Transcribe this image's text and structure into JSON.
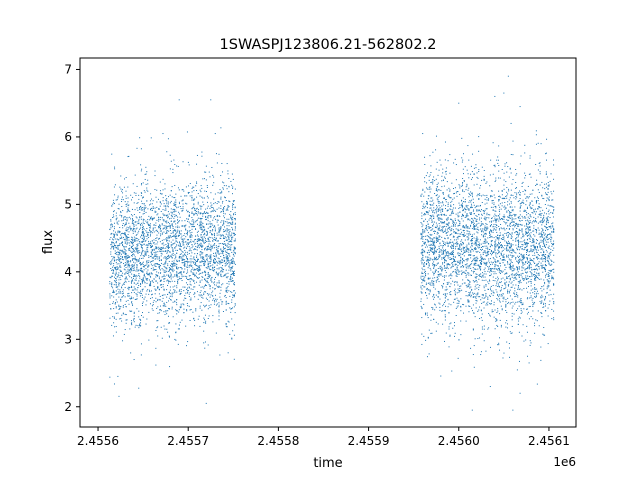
{
  "chart_data": {
    "type": "scatter",
    "title": "1SWASPJ123806.21-562802.2",
    "xlabel": "time",
    "ylabel": "flux",
    "x_offset_label": "1e6",
    "xlim": [
      2455580,
      2456130
    ],
    "ylim": [
      1.7,
      7.17
    ],
    "x_ticks": [
      2455600,
      2455700,
      2455800,
      2455900,
      2456000,
      2456100
    ],
    "x_tick_labels": [
      "2.4556",
      "2.4557",
      "2.4558",
      "2.4559",
      "2.4560",
      "2.4561"
    ],
    "y_ticks": [
      2,
      3,
      4,
      5,
      6,
      7
    ],
    "y_tick_labels": [
      "2",
      "3",
      "4",
      "5",
      "6",
      "7"
    ],
    "grid": false,
    "marker_color": "#1f77b4",
    "series": [
      {
        "segments": [
          {
            "x_range": [
              2455613,
              2455752
            ],
            "y_center": 4.3,
            "y_spread": 0.5
          },
          {
            "x_range": [
              2455958,
              2456105
            ],
            "y_center": 4.35,
            "y_spread": 0.55
          }
        ],
        "outliers": [
          {
            "x": 2455690,
            "y": 6.55
          },
          {
            "x": 2455725,
            "y": 6.55
          },
          {
            "x": 2455672,
            "y": 6.05
          },
          {
            "x": 2455730,
            "y": 6.05
          },
          {
            "x": 2455720,
            "y": 2.05
          },
          {
            "x": 2455960,
            "y": 6.05
          },
          {
            "x": 2456000,
            "y": 6.5
          },
          {
            "x": 2456040,
            "y": 6.6
          },
          {
            "x": 2456055,
            "y": 6.9
          },
          {
            "x": 2456050,
            "y": 6.65
          },
          {
            "x": 2456068,
            "y": 6.45
          },
          {
            "x": 2456058,
            "y": 6.2
          },
          {
            "x": 2456015,
            "y": 1.95
          },
          {
            "x": 2456060,
            "y": 1.95
          },
          {
            "x": 2456035,
            "y": 2.3
          },
          {
            "x": 2456068,
            "y": 2.2
          },
          {
            "x": 2456078,
            "y": 2.65
          },
          {
            "x": 2455622,
            "y": 2.45
          },
          {
            "x": 2455640,
            "y": 2.7
          }
        ]
      }
    ]
  }
}
